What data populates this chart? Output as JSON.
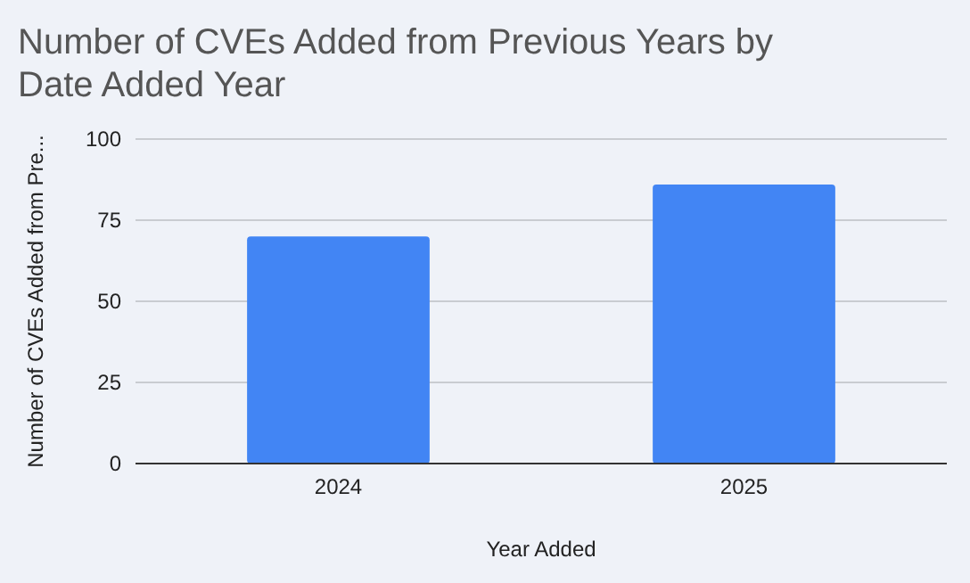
{
  "chart_data": {
    "type": "bar",
    "title": "Number of CVEs Added from Previous Years by Date Added Year",
    "xlabel": "Year Added",
    "ylabel": "Number of CVEs Added from Pre...",
    "categories": [
      "2024",
      "2025"
    ],
    "values": [
      70,
      86
    ],
    "color": "#4285f4",
    "ylim": [
      0,
      100
    ],
    "yticks": [
      0,
      25,
      50,
      75,
      100
    ],
    "grid": "y"
  }
}
